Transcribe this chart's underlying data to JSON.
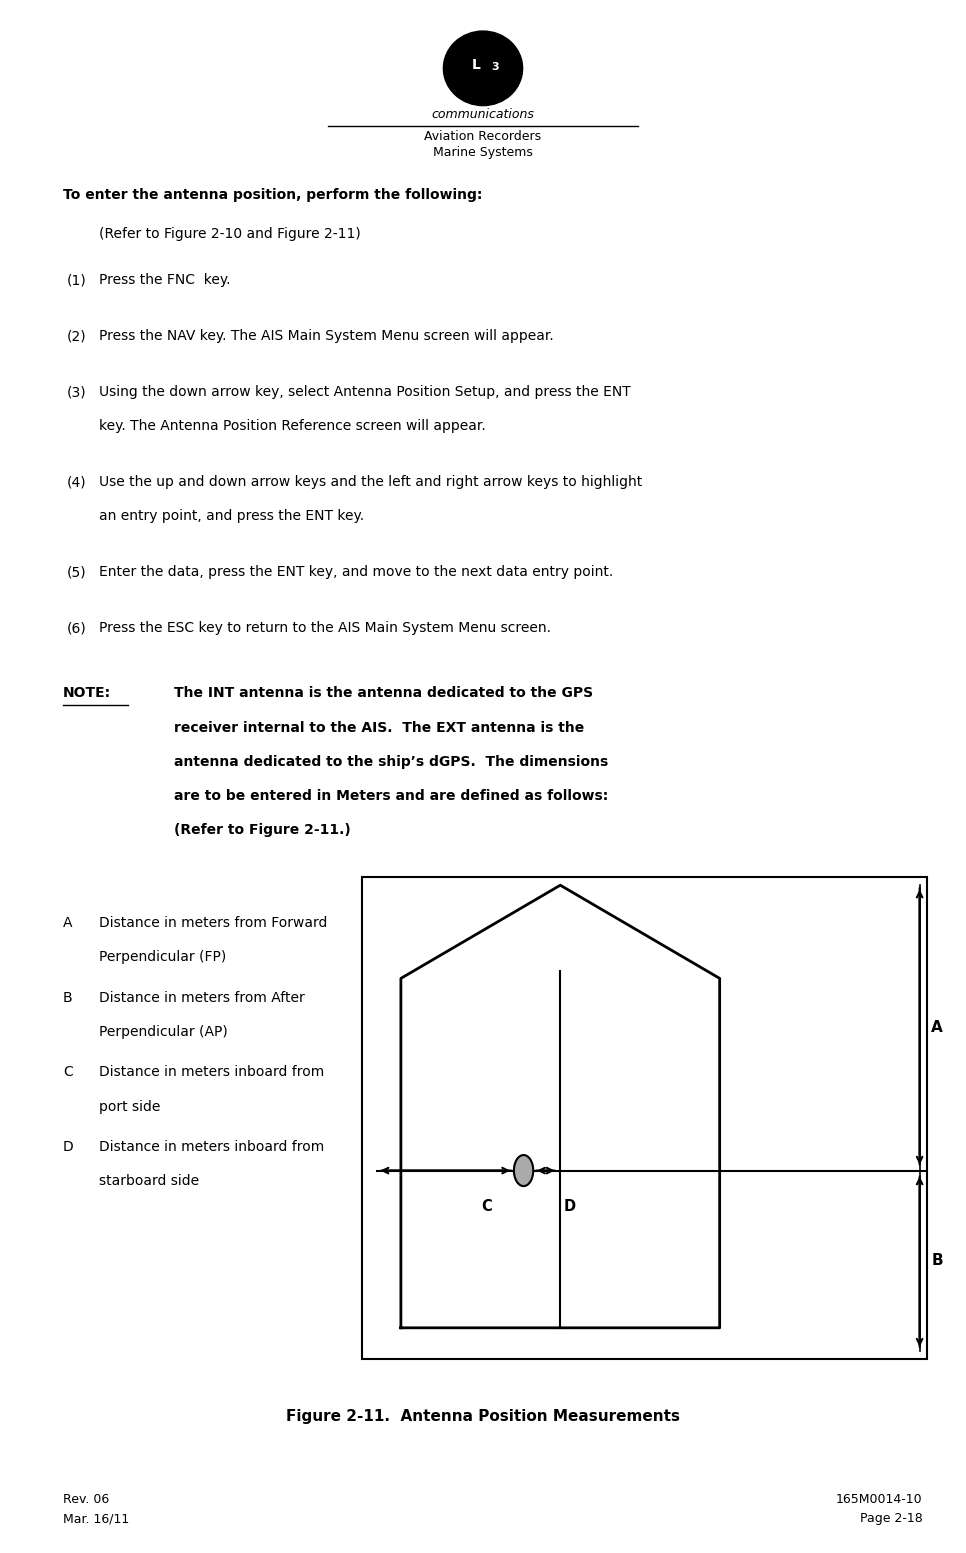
{
  "page_width": 9.66,
  "page_height": 15.53,
  "bg_color": "#ffffff",
  "header": {
    "company_line1": "communications",
    "company_line2": "Aviation Recorders",
    "company_line3": "Marine Systems"
  },
  "title_bold": "To enter the antenna position, perform the following:",
  "title_normal": "(Refer to Figure 2‑10 and Figure 2‑11)",
  "steps": [
    {
      "num": "(1)",
      "text": "Press the FNC  key."
    },
    {
      "num": "(2)",
      "text": "Press the NAV key. The AIS Main System Menu screen will appear."
    },
    {
      "num": "(3)",
      "text": "Using the down arrow key, select Antenna Position Setup, and press the ENT\nkey. The Antenna Position Reference screen will appear."
    },
    {
      "num": "(4)",
      "text": "Use the up and down arrow keys and the left and right arrow keys to highlight\nan entry point, and press the ENT key."
    },
    {
      "num": "(5)",
      "text": "Enter the data, press the ENT key, and move to the next data entry point."
    },
    {
      "num": "(6)",
      "text": "Press the ESC key to return to the AIS Main System Menu screen."
    }
  ],
  "note_label": "NOTE:",
  "note_text": "The INT antenna is the antenna dedicated to the GPS\nreceiver internal to the AIS.  The EXT antenna is the\nantenna dedicated to the ship’s dGPS.  The dimensions\nare to be entered in Meters and are defined as follows:\n(Refer to Figure 2‑11.)",
  "legend": [
    {
      "letter": "A",
      "desc": "Distance in meters from Forward\nPerpendicular (FP)"
    },
    {
      "letter": "B",
      "desc": "Distance in meters from After\nPerpendicular (AP)"
    },
    {
      "letter": "C",
      "desc": "Distance in meters inboard from\nport side"
    },
    {
      "letter": "D",
      "desc": "Distance in meters inboard from\nstarboard side"
    }
  ],
  "figure_caption": "Figure 2‑11.  Antenna Position Measurements",
  "footer_left_line1": "Rev. 06",
  "footer_left_line2": "Mar. 16/11",
  "footer_right_line1": "165M0014-10",
  "footer_right_line2": "Page 2‑18"
}
